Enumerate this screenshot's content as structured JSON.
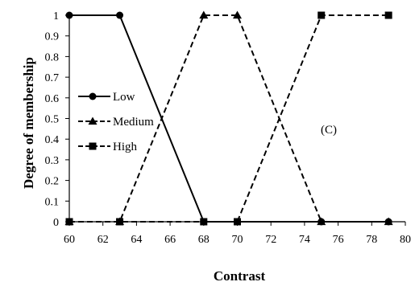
{
  "chart_data": {
    "type": "line",
    "title": "",
    "xlabel": "Contrast",
    "ylabel": "Degree of membership",
    "xlim": [
      60,
      80
    ],
    "ylim": [
      0,
      1
    ],
    "xticks": [
      "60",
      "62",
      "64",
      "66",
      "68",
      "70",
      "72",
      "74",
      "76",
      "78",
      "80"
    ],
    "yticks": [
      "0",
      "0.1",
      "0.2",
      "0.3",
      "0.4",
      "0.5",
      "0.6",
      "0.7",
      "0.8",
      "0.9",
      "1"
    ],
    "grid": false,
    "legend_position": "middle-left",
    "annotation": "(C)",
    "series": [
      {
        "name": "Low",
        "marker": "circle",
        "line_style": "solid",
        "x": [
          60,
          63,
          68,
          70,
          75,
          79
        ],
        "y": [
          1,
          1,
          0,
          0,
          0,
          0
        ]
      },
      {
        "name": "Medium",
        "marker": "triangle",
        "line_style": "dashed",
        "x": [
          60,
          63,
          68,
          70,
          75,
          79
        ],
        "y": [
          0,
          0,
          1,
          1,
          0,
          0
        ]
      },
      {
        "name": "High",
        "marker": "square",
        "line_style": "dashed",
        "x": [
          60,
          63,
          68,
          70,
          75,
          79
        ],
        "y": [
          0,
          0,
          0,
          0,
          1,
          1
        ]
      }
    ]
  }
}
